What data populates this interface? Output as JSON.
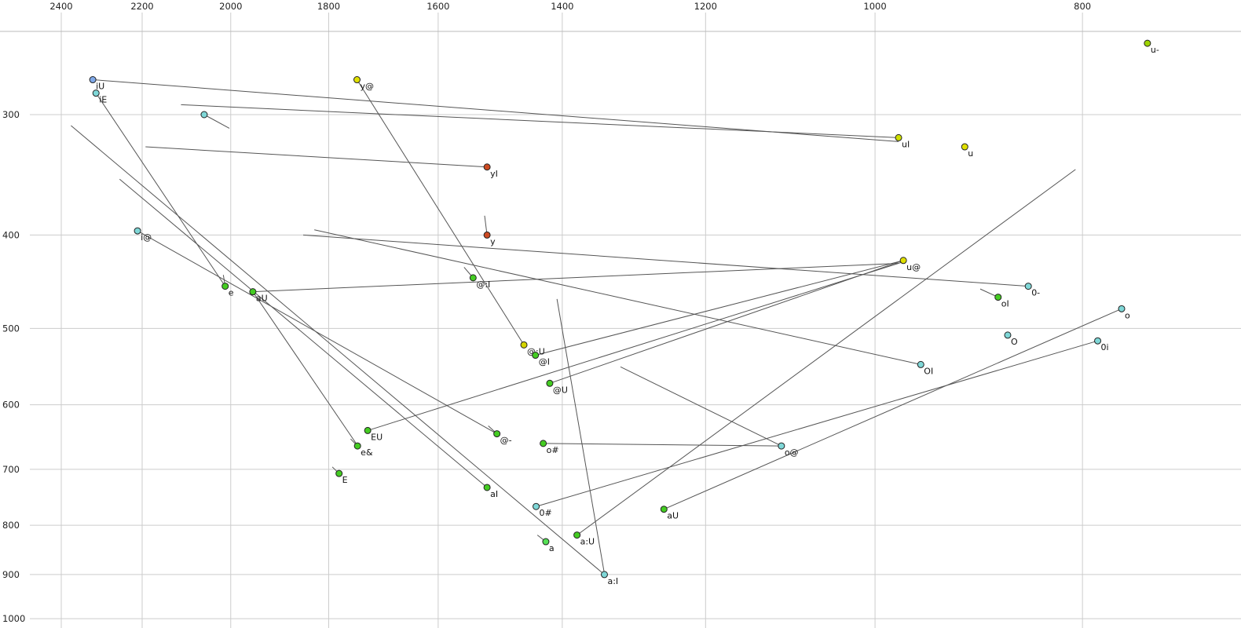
{
  "chart_data": {
    "type": "scatter",
    "title": "",
    "description": "Vowel formant chart (F2 top axis in Hz, reversed log scale; F1 left axis in Hz, reversed log scale) with diphthong trajectory lines",
    "x_axis": {
      "label": "",
      "unit": "Hz",
      "scale": "log",
      "reversed": true,
      "ticks": [
        2400,
        2200,
        2000,
        1800,
        1600,
        1400,
        1200,
        1000,
        800
      ]
    },
    "y_axis": {
      "label": "",
      "unit": "Hz",
      "scale": "log",
      "reversed": true,
      "ticks": [
        300,
        400,
        500,
        600,
        700,
        800,
        900,
        1000
      ]
    },
    "grid": true,
    "colors": {
      "grid": "#cccccc",
      "frame": "#bbbbbb",
      "segment": "#555555",
      "point_stroke": "#222222",
      "point_label": "#111111",
      "axis_text": "#222222"
    },
    "points": [
      {
        "label": "iU",
        "f2": 2320,
        "f1": 276,
        "color": "#7fa8e8"
      },
      {
        "label": "iE",
        "f2": 2312,
        "f1": 285,
        "color": "#7fd7d7"
      },
      {
        "label": "",
        "f2": 2058,
        "f1": 300,
        "color": "#7fd7d7"
      },
      {
        "label": "y@",
        "f2": 1746,
        "f1": 276,
        "color": "#e0e000"
      },
      {
        "label": "u-",
        "f2": 746,
        "f1": 253,
        "color": "#9ed400"
      },
      {
        "label": "uI",
        "f2": 975,
        "f1": 317,
        "color": "#cfe000"
      },
      {
        "label": "u",
        "f2": 908,
        "f1": 324,
        "color": "#e0e000"
      },
      {
        "label": "yI",
        "f2": 1518,
        "f1": 340,
        "color": "#cc4a22"
      },
      {
        "label": "y",
        "f2": 1518,
        "f1": 400,
        "color": "#cc4a22"
      },
      {
        "label": "i@",
        "f2": 2211,
        "f1": 396,
        "color": "#7fd7d7"
      },
      {
        "label": "u@",
        "f2": 970,
        "f1": 425,
        "color": "#e0e000"
      },
      {
        "label": "0-",
        "f2": 848,
        "f1": 452,
        "color": "#7fd7d7"
      },
      {
        "label": "oI",
        "f2": 876,
        "f1": 464,
        "color": "#44cc22"
      },
      {
        "label": "o",
        "f2": 767,
        "f1": 477,
        "color": "#7fd7d7"
      },
      {
        "label": "e",
        "f2": 2012,
        "f1": 452,
        "color": "#44cc22"
      },
      {
        "label": "aU",
        "f2": 1953,
        "f1": 458,
        "color": "#44cc22"
      },
      {
        "label": "@:I",
        "f2": 1541,
        "f1": 443,
        "color": "#44cc22"
      },
      {
        "label": "@:U",
        "f2": 1459,
        "f1": 520,
        "color": "#d4d400"
      },
      {
        "label": "@I",
        "f2": 1441,
        "f1": 533,
        "color": "#44cc22"
      },
      {
        "label": "@U",
        "f2": 1419,
        "f1": 570,
        "color": "#44cc22"
      },
      {
        "label": "@-",
        "f2": 1502,
        "f1": 643,
        "color": "#44cc22"
      },
      {
        "label": "O",
        "f2": 867,
        "f1": 508,
        "color": "#7fd7d7"
      },
      {
        "label": "0i",
        "f2": 787,
        "f1": 515,
        "color": "#7fd7d7"
      },
      {
        "label": "OI",
        "f2": 952,
        "f1": 545,
        "color": "#7fd7d7"
      },
      {
        "label": "EU",
        "f2": 1726,
        "f1": 638,
        "color": "#44cc22"
      },
      {
        "label": "e&",
        "f2": 1745,
        "f1": 662,
        "color": "#44cc22"
      },
      {
        "label": "E",
        "f2": 1780,
        "f1": 707,
        "color": "#44cc22"
      },
      {
        "label": "o#",
        "f2": 1429,
        "f1": 658,
        "color": "#44cc22"
      },
      {
        "label": "o@",
        "f2": 1106,
        "f1": 662,
        "color": "#7fd7d7"
      },
      {
        "label": "aI",
        "f2": 1518,
        "f1": 731,
        "color": "#44cc22"
      },
      {
        "label": "0#",
        "f2": 1440,
        "f1": 765,
        "color": "#7fd7d7"
      },
      {
        "label": "aU",
        "f2": 1255,
        "f1": 770,
        "color": "#44cc22"
      },
      {
        "label": "a:U",
        "f2": 1378,
        "f1": 819,
        "color": "#44cc22"
      },
      {
        "label": "a",
        "f2": 1425,
        "f1": 832,
        "color": "#55e055"
      },
      {
        "label": "a:I",
        "f2": 1338,
        "f1": 900,
        "color": "#7fd7d7"
      }
    ],
    "segments": [
      {
        "from": [
          2320,
          276
        ],
        "to": [
          975,
          320
        ]
      },
      {
        "from": [
          2312,
          285
        ],
        "to": [
          2012,
          452
        ]
      },
      {
        "from": [
          2211,
          396
        ],
        "to": [
          1502,
          643
        ]
      },
      {
        "from": [
          1746,
          276
        ],
        "to": [
          1459,
          520
        ]
      },
      {
        "from": [
          1518,
          340
        ],
        "to": [
          2192,
          324
        ]
      },
      {
        "from": [
          1518,
          400
        ],
        "to": [
          1522,
          382
        ]
      },
      {
        "from": [
          2012,
          452
        ],
        "to": [
          2016,
          440
        ]
      },
      {
        "from": [
          1953,
          458
        ],
        "to": [
          975,
          428
        ]
      },
      {
        "from": [
          975,
          317
        ],
        "to": [
          2110,
          293
        ]
      },
      {
        "from": [
          970,
          425
        ],
        "to": [
          1441,
          533
        ]
      },
      {
        "from": [
          952,
          545
        ],
        "to": [
          1828,
          395
        ]
      },
      {
        "from": [
          1419,
          570
        ],
        "to": [
          970,
          425
        ]
      },
      {
        "from": [
          1726,
          638
        ],
        "to": [
          972,
          427
        ]
      },
      {
        "from": [
          1518,
          731
        ],
        "to": [
          2254,
          350
        ]
      },
      {
        "from": [
          1378,
          819
        ],
        "to": [
          806,
          342
        ]
      },
      {
        "from": [
          1338,
          900
        ],
        "to": [
          2375,
          308
        ]
      },
      {
        "from": [
          1255,
          770
        ],
        "to": [
          767,
          477
        ]
      },
      {
        "from": [
          1440,
          765
        ],
        "to": [
          787,
          515
        ]
      },
      {
        "from": [
          1106,
          662
        ],
        "to": [
          1315,
          548
        ]
      },
      {
        "from": [
          848,
          452
        ],
        "to": [
          1850,
          400
        ]
      },
      {
        "from": [
          2058,
          300
        ],
        "to": [
          2003,
          310
        ]
      },
      {
        "from": [
          1429,
          658
        ],
        "to": [
          1106,
          662
        ]
      },
      {
        "from": [
          1408,
          466
        ],
        "to": [
          1338,
          898
        ]
      },
      {
        "from": [
          1953,
          458
        ],
        "to": [
          1746,
          660
        ]
      },
      {
        "from": [
          876,
          464
        ],
        "to": [
          893,
          455
        ]
      },
      {
        "from": [
          1745,
          662
        ],
        "to": [
          1758,
          651
        ]
      },
      {
        "from": [
          1780,
          707
        ],
        "to": [
          1793,
          696
        ]
      },
      {
        "from": [
          1502,
          643
        ],
        "to": [
          1516,
          631
        ]
      },
      {
        "from": [
          1425,
          832
        ],
        "to": [
          1438,
          819
        ]
      },
      {
        "from": [
          1541,
          443
        ],
        "to": [
          1556,
          432
        ]
      }
    ]
  }
}
